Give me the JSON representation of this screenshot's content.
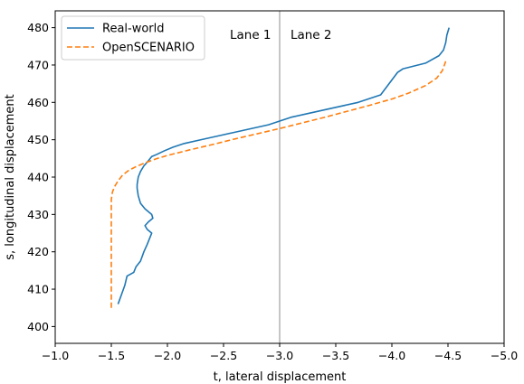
{
  "chart_data": {
    "type": "line",
    "title": "",
    "xlabel": "t, lateral displacement",
    "ylabel": "s, longitudinal displacement",
    "xlim": [
      -1.0,
      -5.0
    ],
    "ylim": [
      395.5,
      484.5
    ],
    "x_inverted": true,
    "grid": false,
    "legend_position": "top-left",
    "x_ticks": [
      -1.0,
      -1.5,
      -2.0,
      -2.5,
      -3.0,
      -3.5,
      -4.0,
      -4.5,
      -5.0
    ],
    "x_tick_labels": [
      "−1.0",
      "−1.5",
      "−2.0",
      "−2.5",
      "−3.0",
      "−3.5",
      "−4.0",
      "−4.5",
      "−5.0"
    ],
    "y_ticks": [
      400,
      410,
      420,
      430,
      440,
      450,
      460,
      470,
      480
    ],
    "y_tick_labels": [
      "400",
      "410",
      "420",
      "430",
      "440",
      "450",
      "460",
      "470",
      "480"
    ],
    "lane_divider_x": -3.0,
    "annotations": [
      {
        "text": "Lane 1",
        "x": -2.74,
        "y": 477
      },
      {
        "text": "Lane 2",
        "x": -3.28,
        "y": 477
      }
    ],
    "series": [
      {
        "name": "Real-world",
        "color": "#1f77b4",
        "style": "solid",
        "points": [
          [
            -1.56,
            406
          ],
          [
            -1.59,
            408.5
          ],
          [
            -1.62,
            411
          ],
          [
            -1.64,
            413.5
          ],
          [
            -1.7,
            414.5
          ],
          [
            -1.72,
            416
          ],
          [
            -1.76,
            417.5
          ],
          [
            -1.79,
            420
          ],
          [
            -1.82,
            422
          ],
          [
            -1.84,
            423.5
          ],
          [
            -1.86,
            425
          ],
          [
            -1.82,
            426
          ],
          [
            -1.8,
            427
          ],
          [
            -1.83,
            428
          ],
          [
            -1.87,
            429
          ],
          [
            -1.86,
            430
          ],
          [
            -1.8,
            431.5
          ],
          [
            -1.76,
            433
          ],
          [
            -1.74,
            435
          ],
          [
            -1.73,
            437
          ],
          [
            -1.73,
            438
          ],
          [
            -1.74,
            440
          ],
          [
            -1.76,
            441.5
          ],
          [
            -1.79,
            443
          ],
          [
            -1.82,
            444
          ],
          [
            -1.86,
            445.5
          ],
          [
            -1.9,
            446
          ],
          [
            -1.97,
            447
          ],
          [
            -2.05,
            448
          ],
          [
            -2.15,
            449
          ],
          [
            -2.3,
            450
          ],
          [
            -2.45,
            451
          ],
          [
            -2.6,
            452
          ],
          [
            -2.75,
            453
          ],
          [
            -2.9,
            454
          ],
          [
            -3.0,
            455
          ],
          [
            -3.1,
            456
          ],
          [
            -3.25,
            457
          ],
          [
            -3.4,
            458
          ],
          [
            -3.55,
            459
          ],
          [
            -3.7,
            460
          ],
          [
            -3.8,
            461
          ],
          [
            -3.9,
            462
          ],
          [
            -3.95,
            464
          ],
          [
            -4.0,
            466
          ],
          [
            -4.05,
            468
          ],
          [
            -4.1,
            469
          ],
          [
            -4.3,
            470.5
          ],
          [
            -4.42,
            472.5
          ],
          [
            -4.46,
            474
          ],
          [
            -4.48,
            476
          ],
          [
            -4.49,
            478
          ],
          [
            -4.51,
            480
          ]
        ]
      },
      {
        "name": "OpenSCENARIO",
        "color": "#ff7f0e",
        "style": "dashed",
        "points": [
          [
            -1.5,
            405
          ],
          [
            -1.5,
            410
          ],
          [
            -1.5,
            415
          ],
          [
            -1.5,
            420
          ],
          [
            -1.5,
            425
          ],
          [
            -1.5,
            430
          ],
          [
            -1.5,
            434
          ],
          [
            -1.51,
            436
          ],
          [
            -1.53,
            437.5
          ],
          [
            -1.56,
            439
          ],
          [
            -1.6,
            440.5
          ],
          [
            -1.65,
            441.7
          ],
          [
            -1.72,
            442.8
          ],
          [
            -1.8,
            443.8
          ],
          [
            -1.9,
            444.9
          ],
          [
            -2.0,
            445.8
          ],
          [
            -2.2,
            447.3
          ],
          [
            -2.4,
            448.7
          ],
          [
            -2.6,
            450.2
          ],
          [
            -2.8,
            451.6
          ],
          [
            -3.0,
            453
          ],
          [
            -3.2,
            454.5
          ],
          [
            -3.4,
            456
          ],
          [
            -3.6,
            457.6
          ],
          [
            -3.8,
            459.2
          ],
          [
            -4.0,
            460.9
          ],
          [
            -4.15,
            462.5
          ],
          [
            -4.3,
            464.5
          ],
          [
            -4.4,
            466.5
          ],
          [
            -4.45,
            468.5
          ],
          [
            -4.48,
            471
          ]
        ]
      }
    ]
  }
}
